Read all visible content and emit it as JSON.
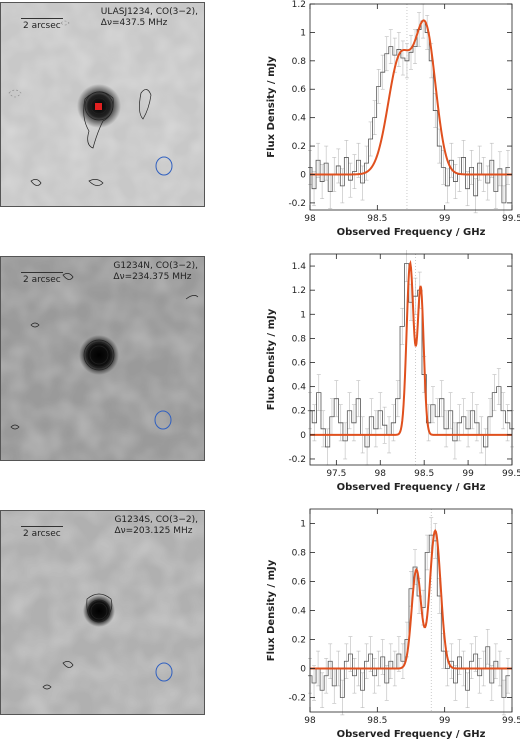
{
  "panels": [
    {
      "map": {
        "title_lines": [
          "ULASJ1234, CO(3−2),",
          "Δν=437.5 MHz"
        ],
        "scale_label": "2 arcsec"
      },
      "chart_data": {
        "type": "line",
        "xlabel": "Observed Frequency / GHz",
        "ylabel": "Flux Density / mJy",
        "xlim": [
          98,
          99.5
        ],
        "ylim": [
          -0.25,
          1.2
        ],
        "xticks": [
          98,
          98.5,
          99,
          99.5
        ],
        "xtick_labels": [
          "98",
          "98.5",
          "99",
          "99.5"
        ],
        "yticks": [
          -0.2,
          0,
          0.2,
          0.4,
          0.6,
          0.8,
          1,
          1.2
        ],
        "ytick_labels": [
          "-0.2",
          "0",
          "0.2",
          "0.4",
          "0.6",
          "0.8",
          "1",
          "1.2"
        ],
        "vline": 98.72,
        "model": {
          "color": "#e0501e",
          "components": [
            {
              "amp": 0.82,
              "center": 98.67,
              "sigma": 0.09
            },
            {
              "amp": 0.98,
              "center": 98.86,
              "sigma": 0.075
            }
          ]
        },
        "spectrum": {
          "x": [
            98.0,
            98.03,
            98.06,
            98.09,
            98.12,
            98.15,
            98.18,
            98.21,
            98.24,
            98.27,
            98.3,
            98.33,
            98.36,
            98.39,
            98.42,
            98.45,
            98.48,
            98.51,
            98.54,
            98.57,
            98.6,
            98.63,
            98.66,
            98.69,
            98.72,
            98.75,
            98.78,
            98.81,
            98.84,
            98.87,
            98.9,
            98.93,
            98.96,
            98.99,
            99.02,
            99.05,
            99.08,
            99.11,
            99.14,
            99.17,
            99.2,
            99.23,
            99.26,
            99.29,
            99.32,
            99.35,
            99.38,
            99.41,
            99.44,
            99.47
          ],
          "y": [
            0.05,
            -0.1,
            0.1,
            -0.05,
            0.08,
            -0.12,
            0.0,
            0.06,
            -0.08,
            0.12,
            -0.04,
            0.02,
            0.1,
            -0.06,
            0.08,
            0.25,
            0.4,
            0.62,
            0.72,
            0.85,
            0.9,
            0.84,
            0.88,
            0.82,
            0.8,
            0.86,
            0.9,
            1.02,
            1.08,
            1.0,
            0.8,
            0.45,
            0.2,
            0.05,
            -0.08,
            0.1,
            -0.05,
            0.0,
            0.12,
            -0.1,
            0.05,
            -0.15,
            0.08,
            0.0,
            -0.06,
            0.1,
            -0.12,
            0.04,
            -0.2,
            0.05
          ],
          "err": 0.12
        }
      }
    },
    {
      "map": {
        "title_lines": [
          "G1234N, CO(3−2),",
          "Δν=234.375 MHz"
        ],
        "scale_label": "2 arcsec"
      },
      "chart_data": {
        "type": "line",
        "xlabel": "Observed Frequency / GHz",
        "ylabel": "Flux Density / mJy",
        "xlim": [
          97.2,
          99.5
        ],
        "ylim": [
          -0.25,
          1.5
        ],
        "xticks": [
          97.5,
          98,
          98.5,
          99,
          99.5
        ],
        "xtick_labels": [
          "97.5",
          "98",
          "98.5",
          "99",
          "99.5"
        ],
        "yticks": [
          -0.2,
          0,
          0.2,
          0.4,
          0.6,
          0.8,
          1,
          1.2,
          1.4
        ],
        "ytick_labels": [
          "-0.2",
          "0",
          "0.2",
          "0.4",
          "0.6",
          "0.8",
          "1",
          "1.2",
          "1.4"
        ],
        "vline": 98.4,
        "model": {
          "color": "#e0501e",
          "components": [
            {
              "amp": 1.42,
              "center": 98.34,
              "sigma": 0.04
            },
            {
              "amp": 1.22,
              "center": 98.46,
              "sigma": 0.035
            }
          ]
        },
        "spectrum": {
          "x": [
            97.2,
            97.25,
            97.3,
            97.35,
            97.4,
            97.45,
            97.5,
            97.55,
            97.6,
            97.65,
            97.7,
            97.75,
            97.8,
            97.85,
            97.9,
            97.95,
            98.0,
            98.05,
            98.1,
            98.15,
            98.2,
            98.25,
            98.3,
            98.35,
            98.4,
            98.45,
            98.5,
            98.55,
            98.6,
            98.65,
            98.7,
            98.75,
            98.8,
            98.85,
            98.9,
            98.95,
            99.0,
            99.05,
            99.1,
            99.15,
            99.2,
            99.25,
            99.3,
            99.35,
            99.4,
            99.45,
            99.5
          ],
          "y": [
            0.2,
            0.1,
            0.35,
            0.05,
            -0.1,
            0.15,
            0.3,
            0.1,
            -0.05,
            0.2,
            0.1,
            0.3,
            0.0,
            -0.1,
            0.15,
            0.05,
            0.2,
            0.08,
            0.0,
            0.1,
            0.3,
            0.9,
            1.42,
            1.1,
            1.15,
            1.2,
            0.5,
            0.1,
            0.25,
            0.15,
            0.3,
            0.05,
            0.2,
            -0.05,
            0.1,
            0.15,
            0.05,
            0.2,
            0.1,
            0.0,
            -0.1,
            0.15,
            0.35,
            0.4,
            0.2,
            0.1,
            0.05
          ],
          "err": 0.15
        }
      }
    },
    {
      "map": {
        "title_lines": [
          "G1234S, CO(3−2),",
          "Δν=203.125 MHz"
        ],
        "scale_label": "2 arcsec"
      },
      "chart_data": {
        "type": "line",
        "xlabel": "Observed Frequency / GHz",
        "ylabel": "Flux Density / mJy",
        "xlim": [
          98,
          99.5
        ],
        "ylim": [
          -0.3,
          1.1
        ],
        "xticks": [
          98,
          98.5,
          99,
          99.5
        ],
        "xtick_labels": [
          "98",
          "98.5",
          "99",
          "99.5"
        ],
        "yticks": [
          -0.2,
          0,
          0.2,
          0.4,
          0.6,
          0.8,
          1
        ],
        "ytick_labels": [
          "-0.2",
          "0",
          "0.2",
          "0.4",
          "0.6",
          "0.8",
          "1"
        ],
        "vline": 98.9,
        "model": {
          "color": "#e0501e",
          "components": [
            {
              "amp": 0.68,
              "center": 98.79,
              "sigma": 0.035
            },
            {
              "amp": 0.95,
              "center": 98.93,
              "sigma": 0.04
            }
          ]
        },
        "spectrum": {
          "x": [
            98.0,
            98.03,
            98.06,
            98.09,
            98.12,
            98.15,
            98.18,
            98.21,
            98.24,
            98.27,
            98.3,
            98.33,
            98.36,
            98.39,
            98.42,
            98.45,
            98.48,
            98.51,
            98.54,
            98.57,
            98.6,
            98.63,
            98.66,
            98.69,
            98.72,
            98.75,
            98.78,
            98.81,
            98.84,
            98.87,
            98.9,
            98.93,
            98.96,
            98.99,
            99.02,
            99.05,
            99.08,
            99.11,
            99.14,
            99.17,
            99.2,
            99.23,
            99.26,
            99.29,
            99.32,
            99.35,
            99.38,
            99.41,
            99.44,
            99.47
          ],
          "y": [
            -0.05,
            -0.1,
            0.0,
            -0.15,
            -0.05,
            0.05,
            -0.12,
            0.0,
            -0.2,
            0.05,
            0.1,
            -0.05,
            0.0,
            -0.15,
            0.05,
            0.1,
            -0.05,
            0.0,
            0.08,
            -0.1,
            0.05,
            0.0,
            0.1,
            0.05,
            0.2,
            0.55,
            0.7,
            0.5,
            0.42,
            0.8,
            0.92,
            0.88,
            0.5,
            0.12,
            0.0,
            0.05,
            -0.1,
            0.08,
            0.0,
            -0.15,
            0.05,
            0.1,
            -0.05,
            0.0,
            0.15,
            -0.1,
            0.05,
            0.0,
            -0.2,
            -0.05
          ],
          "err": 0.12
        }
      }
    }
  ]
}
